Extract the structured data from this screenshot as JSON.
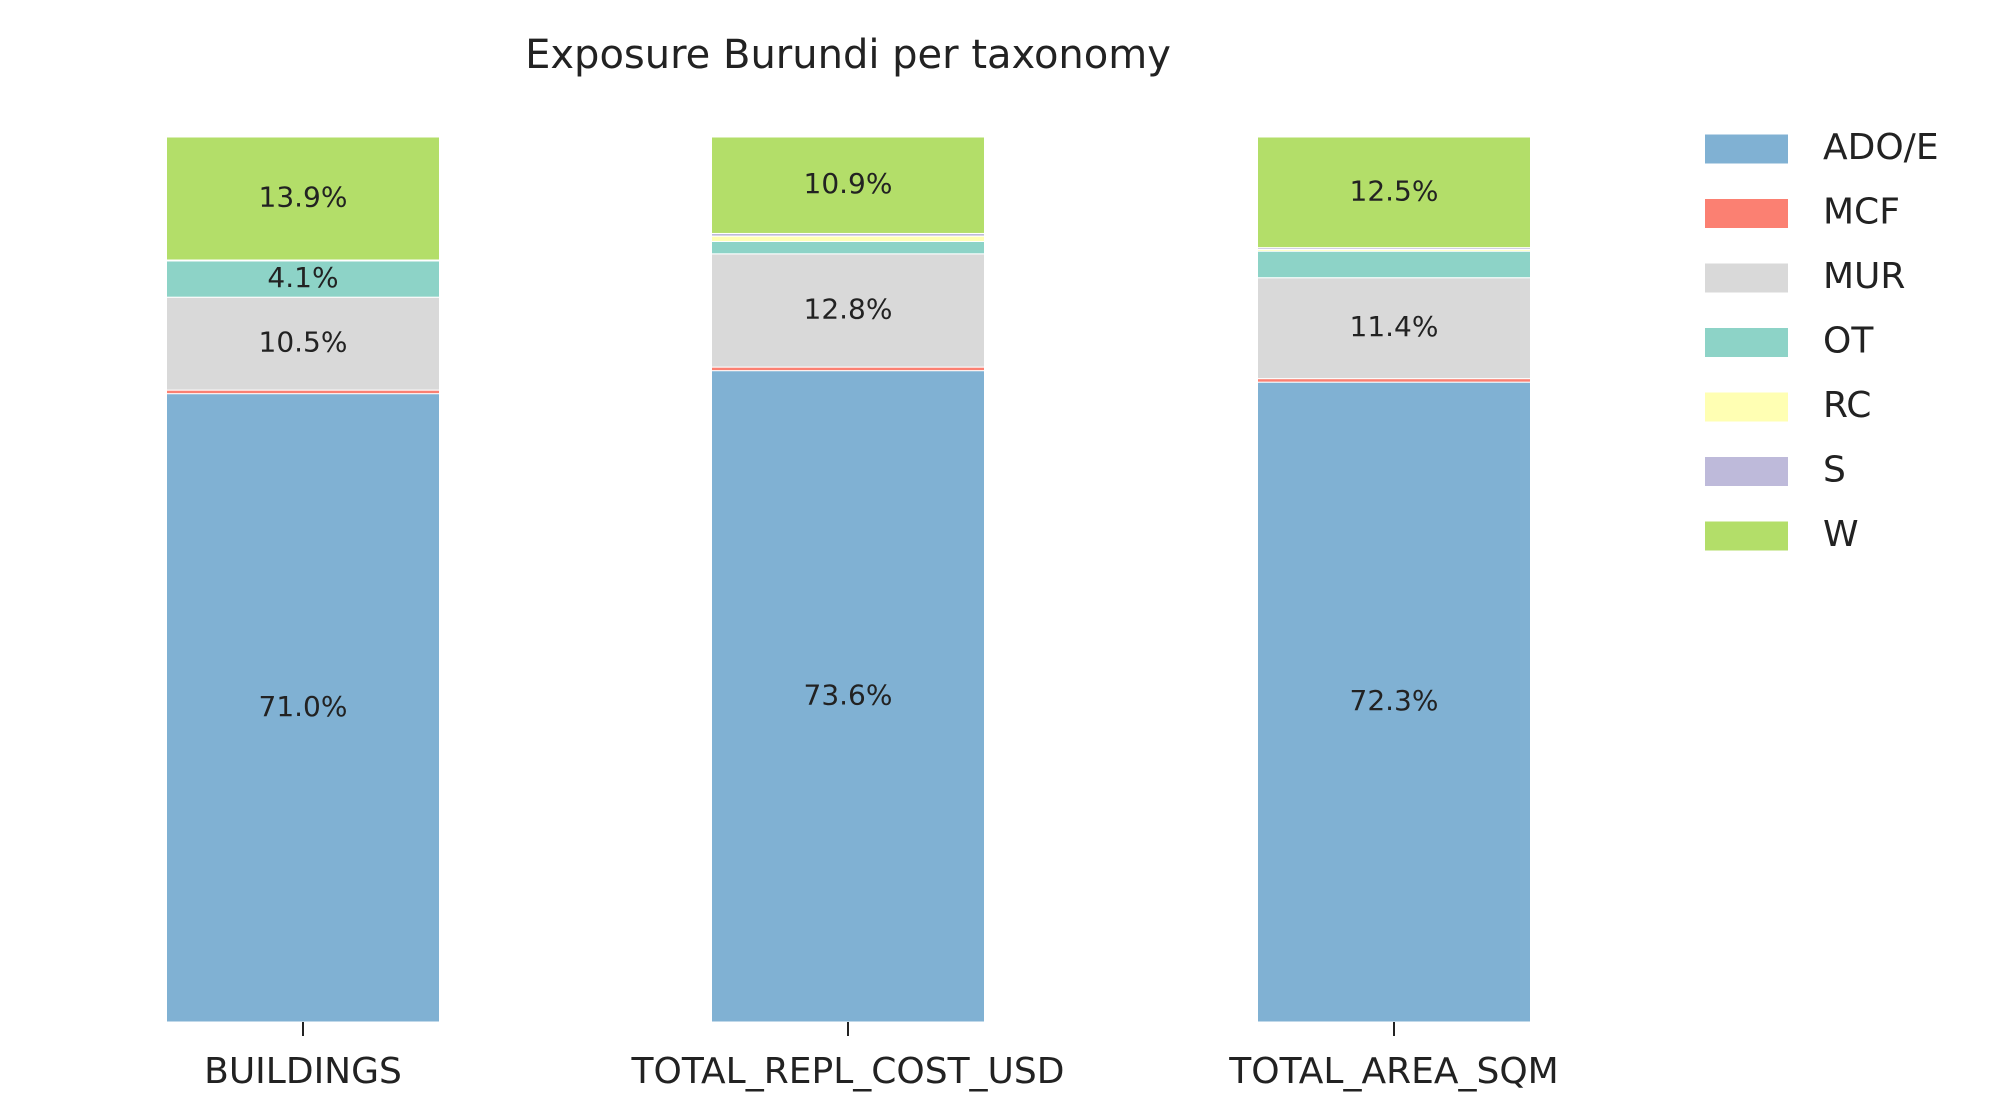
{
  "chart_data": {
    "type": "bar",
    "stacked": true,
    "title": "Exposure Burundi per taxonomy",
    "xlabel": "",
    "ylabel": "",
    "ylim": [
      0,
      100
    ],
    "categories": [
      "BUILDINGS",
      "TOTAL_REPL_COST_USD",
      "TOTAL_AREA_SQM"
    ],
    "series": [
      {
        "name": "ADO/E",
        "color": "#80b1d3",
        "values": [
          71.0,
          73.6,
          72.3
        ],
        "labels": [
          "71.0%",
          "73.6%",
          "72.3%"
        ]
      },
      {
        "name": "MCF",
        "color": "#fb8072",
        "values": [
          0.4,
          0.4,
          0.4
        ],
        "labels": [
          "",
          "",
          ""
        ]
      },
      {
        "name": "MUR",
        "color": "#d9d9d9",
        "values": [
          10.5,
          12.8,
          11.4
        ],
        "labels": [
          "10.5%",
          "12.8%",
          "11.4%"
        ]
      },
      {
        "name": "OT",
        "color": "#8dd3c7",
        "values": [
          4.1,
          1.4,
          3.0
        ],
        "labels": [
          "4.1%",
          "",
          ""
        ]
      },
      {
        "name": "RC",
        "color": "#ffffb3",
        "values": [
          0.1,
          0.6,
          0.2
        ],
        "labels": [
          "",
          "",
          ""
        ]
      },
      {
        "name": "S",
        "color": "#bebada",
        "values": [
          0.0,
          0.3,
          0.2
        ],
        "labels": [
          "",
          "",
          ""
        ]
      },
      {
        "name": "W",
        "color": "#b3de69",
        "values": [
          13.9,
          10.9,
          12.5
        ],
        "labels": [
          "13.9%",
          "10.9%",
          "12.5%"
        ]
      }
    ],
    "legend_position": "right",
    "grid": false
  }
}
